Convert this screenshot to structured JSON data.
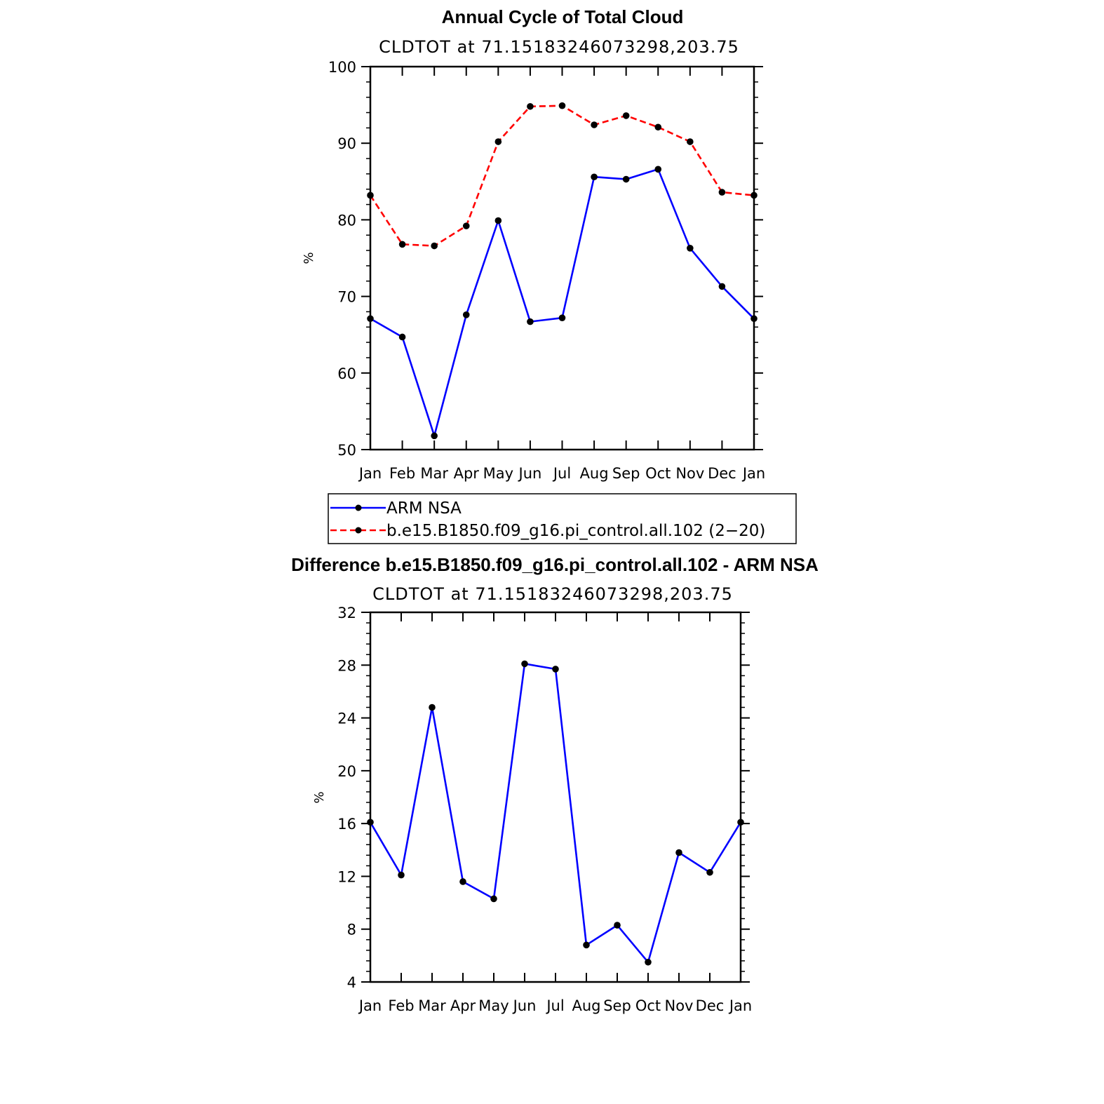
{
  "chart_data": [
    {
      "type": "line",
      "title": "Annual Cycle of Total Cloud",
      "subtitle": "CLDTOT at 71.15183246073298,203.75",
      "xlabel": "",
      "ylabel": "%",
      "categories": [
        "Jan",
        "Feb",
        "Mar",
        "Apr",
        "May",
        "Jun",
        "Jul",
        "Aug",
        "Sep",
        "Oct",
        "Nov",
        "Dec",
        "Jan"
      ],
      "ylim": [
        50,
        100
      ],
      "yticks": [
        50,
        60,
        70,
        80,
        90,
        100
      ],
      "series": [
        {
          "name": "ARM NSA",
          "color": "#0000ff",
          "dash": "solid",
          "values": [
            67.1,
            64.7,
            51.8,
            67.6,
            79.9,
            66.7,
            67.2,
            85.6,
            85.3,
            86.6,
            76.3,
            71.3,
            67.1
          ]
        },
        {
          "name": "b.e15.B1850.f09_g16.pi_control.all.102 (2−20)",
          "color": "#ff0000",
          "dash": "dashed",
          "values": [
            83.2,
            76.8,
            76.6,
            79.2,
            90.2,
            94.8,
            94.9,
            92.4,
            93.6,
            92.1,
            90.2,
            83.6,
            83.2
          ]
        }
      ],
      "legend": "below"
    },
    {
      "type": "line",
      "title": "Difference b.e15.B1850.f09_g16.pi_control.all.102 - ARM NSA",
      "subtitle": "CLDTOT at 71.15183246073298,203.75",
      "xlabel": "",
      "ylabel": "%",
      "categories": [
        "Jan",
        "Feb",
        "Mar",
        "Apr",
        "May",
        "Jun",
        "Jul",
        "Aug",
        "Sep",
        "Oct",
        "Nov",
        "Dec",
        "Jan"
      ],
      "ylim": [
        4,
        32
      ],
      "yticks": [
        4,
        8,
        12,
        16,
        20,
        24,
        28,
        32
      ],
      "series": [
        {
          "name": "Difference",
          "color": "#0000ff",
          "dash": "solid",
          "values": [
            16.1,
            12.1,
            24.8,
            11.6,
            10.3,
            28.1,
            27.7,
            6.8,
            8.3,
            5.5,
            13.8,
            12.3,
            16.1
          ]
        }
      ]
    }
  ]
}
